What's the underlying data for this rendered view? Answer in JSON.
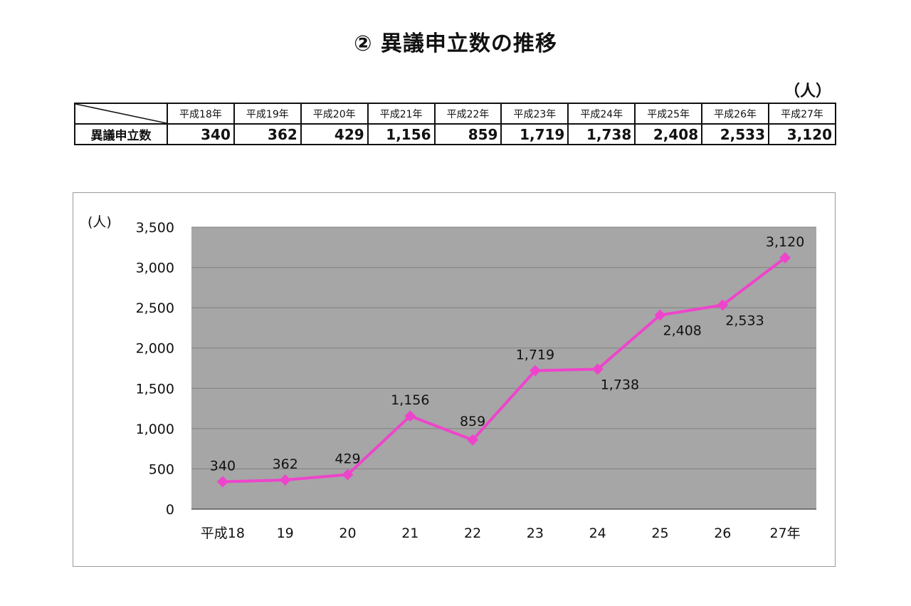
{
  "title": "② 異議申立数の推移",
  "table": {
    "unit": "（人）",
    "row_label": "異議申立数",
    "headers": [
      "平成18年",
      "平成19年",
      "平成20年",
      "平成21年",
      "平成22年",
      "平成23年",
      "平成24年",
      "平成25年",
      "平成26年",
      "平成27年"
    ],
    "values": [
      "340",
      "362",
      "429",
      "1,156",
      "859",
      "1,719",
      "1,738",
      "2,408",
      "2,533",
      "3,120"
    ]
  },
  "chart_data": {
    "type": "line",
    "title": "",
    "ylabel": "(人)",
    "xlabel": "",
    "categories": [
      "平成18",
      "19",
      "20",
      "21",
      "22",
      "23",
      "24",
      "25",
      "26",
      "27年"
    ],
    "series": [
      {
        "values": [
          340,
          362,
          429,
          1156,
          859,
          1719,
          1738,
          2408,
          2533,
          3120
        ]
      }
    ],
    "data_labels": [
      "340",
      "362",
      "429",
      "1,156",
      "859",
      "1,719",
      "1,738",
      "2,408",
      "2,533",
      "3,120"
    ],
    "yticks": [
      0,
      500,
      1000,
      1500,
      2000,
      2500,
      3000,
      3500
    ],
    "ytick_labels": [
      "0",
      "500",
      "1,000",
      "1,500",
      "2,000",
      "2,500",
      "3,000",
      "3,500"
    ],
    "ylim": [
      0,
      3500
    ],
    "grid": true,
    "legend": "none",
    "colors": {
      "line": "#ee44cc",
      "plot_background": "#a6a6a6",
      "grid": "#808080"
    }
  }
}
